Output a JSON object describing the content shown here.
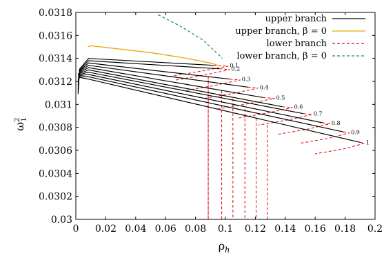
{
  "chart_data": {
    "type": "line",
    "title": "",
    "xlabel": "ρ",
    "xlabel_sub": "h",
    "ylabel": "ω",
    "ylabel_sup": "2",
    "ylabel_sub": "1",
    "xlim": [
      0,
      0.2
    ],
    "ylim": [
      0.03,
      0.0318
    ],
    "x_ticks": [
      0,
      0.02,
      0.04,
      0.06,
      0.08,
      0.1,
      0.12,
      0.14,
      0.16,
      0.18,
      0.2
    ],
    "x_tick_labels": [
      "0",
      "0.02",
      "0.04",
      "0.06",
      "0.08",
      "0.1",
      "0.12",
      "0.14",
      "0.16",
      "0.18",
      "0.2"
    ],
    "y_ticks": [
      0.03,
      0.0302,
      0.0304,
      0.0306,
      0.0308,
      0.031,
      0.0312,
      0.0314,
      0.0316,
      0.0318
    ],
    "y_tick_labels": [
      "0.03",
      "0.0302",
      "0.0304",
      "0.0306",
      "0.0308",
      "0.031",
      "0.0312",
      "0.0314",
      "0.0316",
      "0.0318"
    ],
    "grid": false,
    "legend_position": "top-right",
    "legend": [
      {
        "label": "upper branch",
        "color": "#000000",
        "style": "solid"
      },
      {
        "label": "upper branch, β = 0",
        "color": "#e6a800",
        "style": "solid"
      },
      {
        "label": "lower branch",
        "color": "#e00000",
        "style": "dashed"
      },
      {
        "label": "lower branch, β = 0",
        "color": "#1a8a6a",
        "style": "dashed"
      }
    ],
    "series": [
      {
        "beta": "0.1",
        "start_x": 0.0015,
        "end_x": 0.092,
        "start_y": 0.03109,
        "end_y": 0.03134,
        "peak_x": 0.0085,
        "peak_y": 0.0314,
        "turn_x": 0.102,
        "drop_x": 0.0885
      },
      {
        "beta": "0.2",
        "start_x": 0.0015,
        "end_x": 0.096,
        "start_y": 0.03111,
        "end_y": 0.03131,
        "peak_x": 0.0085,
        "peak_y": 0.03138,
        "turn_x": 0.103,
        "drop_x": 0.0885
      },
      {
        "beta": "0.3",
        "start_x": 0.0015,
        "end_x": 0.103,
        "start_y": 0.03113,
        "end_y": 0.03122,
        "peak_x": 0.0085,
        "peak_y": 0.03136,
        "turn_x": 0.11,
        "drop_x": 0.0975
      },
      {
        "beta": "0.4",
        "start_x": 0.0015,
        "end_x": 0.115,
        "start_y": 0.03115,
        "end_y": 0.03115,
        "peak_x": 0.0085,
        "peak_y": 0.03134,
        "turn_x": 0.122,
        "drop_x": 0.105
      },
      {
        "beta": "0.5",
        "start_x": 0.0015,
        "end_x": 0.125,
        "start_y": 0.03117,
        "end_y": 0.03106,
        "peak_x": 0.0085,
        "peak_y": 0.03132,
        "turn_x": 0.133,
        "drop_x": 0.113
      },
      {
        "beta": "0.6",
        "start_x": 0.0015,
        "end_x": 0.138,
        "start_y": 0.03119,
        "end_y": 0.03098,
        "peak_x": 0.0085,
        "peak_y": 0.0313,
        "turn_x": 0.145,
        "drop_x": 0.1205
      },
      {
        "beta": "0.7",
        "start_x": 0.0015,
        "end_x": 0.152,
        "start_y": 0.03121,
        "end_y": 0.03092,
        "peak_x": 0.0085,
        "peak_y": 0.03128,
        "turn_x": 0.158,
        "drop_x": 0.128
      },
      {
        "beta": "0.8",
        "start_x": 0.0015,
        "end_x": 0.165,
        "start_y": 0.03123,
        "end_y": 0.03084,
        "peak_x": 0.0085,
        "peak_y": 0.03126,
        "turn_x": 0.17,
        "drop_x": null
      },
      {
        "beta": "0.9",
        "start_x": 0.0015,
        "end_x": 0.179,
        "start_y": 0.03125,
        "end_y": 0.03076,
        "peak_x": 0.0085,
        "peak_y": 0.03124,
        "turn_x": 0.183,
        "drop_x": null
      },
      {
        "beta": "1",
        "start_x": 0.0015,
        "end_x": 0.19,
        "start_y": 0.03127,
        "end_y": 0.03067,
        "peak_x": 0.0085,
        "peak_y": 0.03122,
        "turn_x": 0.193,
        "drop_x": null
      }
    ],
    "beta0_upper": {
      "x": [
        0.008,
        0.01,
        0.03,
        0.05,
        0.07,
        0.09,
        0.095
      ],
      "y": [
        0.0315,
        0.03151,
        0.03148,
        0.03145,
        0.03141,
        0.03136,
        0.03134
      ]
    },
    "beta0_lower": {
      "x": [
        0.055,
        0.07,
        0.085,
        0.098
      ],
      "y": [
        0.03178,
        0.03168,
        0.03156,
        0.0314
      ]
    }
  }
}
